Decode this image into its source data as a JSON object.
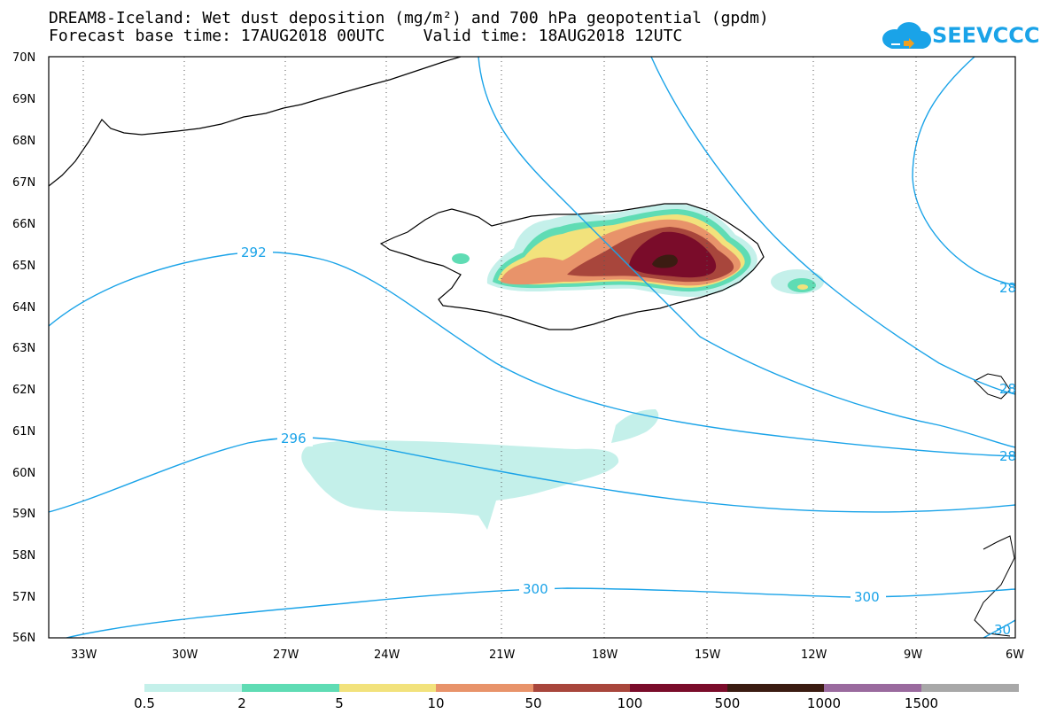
{
  "title": {
    "line1": "DREAM8-Iceland: Wet dust deposition (mg/m²) and 700 hPa geopotential (gpdm)",
    "line2": "Forecast base time: 17AUG2018 00UTC    Valid time: 18AUG2018 12UTC"
  },
  "logo": {
    "text": "SEEVCCC",
    "color": "#1aa3e8"
  },
  "map": {
    "lat_labels": [
      "70N",
      "69N",
      "68N",
      "67N",
      "66N",
      "65N",
      "64N",
      "63N",
      "62N",
      "61N",
      "60N",
      "59N",
      "58N",
      "57N",
      "56N"
    ],
    "lon_labels": [
      "33W",
      "30W",
      "27W",
      "24W",
      "21W",
      "18W",
      "15W",
      "12W",
      "9W",
      "6W"
    ],
    "contour_labels": [
      "292",
      "296",
      "300",
      "300",
      "28",
      "28",
      "28",
      "30"
    ],
    "contour_color": "#1aa3e8"
  },
  "legend": {
    "labels": [
      "0.5",
      "2",
      "5",
      "10",
      "50",
      "100",
      "500",
      "1000",
      "1500"
    ],
    "colors": [
      "#c4f0ea",
      "#5fdcb4",
      "#f2e27c",
      "#e8936a",
      "#a8463c",
      "#7a0c2a",
      "#3b1c12",
      "#9a6a9e",
      "#a8a8a8"
    ]
  }
}
